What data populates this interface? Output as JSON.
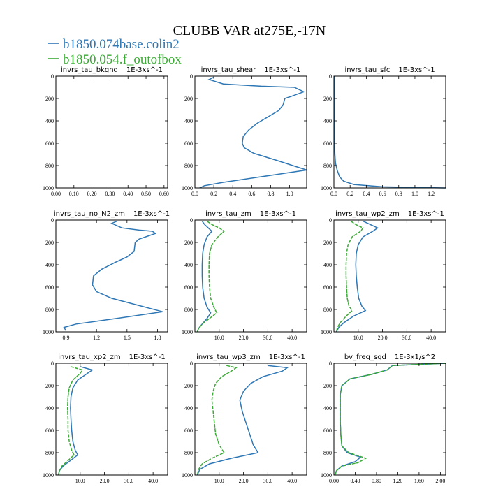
{
  "figure": {
    "title": "CLUBB VAR at275E,-17N"
  },
  "legend": [
    {
      "label": "b1850.074base.colin2",
      "color": "#2e77b5"
    },
    {
      "label": "b1850.054.f_outofbox",
      "color": "#3aaa35"
    }
  ],
  "chart_data": [
    {
      "type": "line",
      "title": "invrs_tau_bkgnd",
      "units": "1E-3xs^-1",
      "xlim": [
        0,
        0.62
      ],
      "ylim": [
        1000,
        0
      ],
      "xticks": [
        "0.00",
        "0.10",
        "0.20",
        "0.30",
        "0.40",
        "0.50",
        "0.60"
      ],
      "xtick_values": [
        0,
        0.1,
        0.2,
        0.3,
        0.4,
        0.5,
        0.6
      ],
      "yticks": [
        0,
        200,
        400,
        600,
        800,
        1000
      ],
      "series": []
    },
    {
      "type": "line",
      "title": "invrs_tau_shear",
      "units": "1E-3xs^-1",
      "xlim": [
        0,
        1.18
      ],
      "ylim": [
        1000,
        0
      ],
      "xticks": [
        "0.0",
        "0.2",
        "0.4",
        "0.6",
        "0.8",
        "1.0"
      ],
      "xtick_values": [
        0,
        0.2,
        0.4,
        0.6,
        0.8,
        1.0
      ],
      "yticks": [
        0,
        200,
        400,
        600,
        800,
        1000
      ],
      "series": [
        {
          "color": "#2e77b5",
          "x": [
            0.2,
            0.15,
            0.3,
            0.7,
            1.05,
            1.15,
            1.02,
            0.95,
            0.93,
            0.88,
            0.78,
            0.66,
            0.57,
            0.51,
            0.5,
            0.52,
            0.62,
            0.85,
            1.18,
            0.7,
            0.3,
            0.1,
            0.05
          ],
          "y": [
            10,
            30,
            70,
            90,
            100,
            140,
            180,
            200,
            260,
            310,
            360,
            420,
            480,
            540,
            600,
            640,
            690,
            750,
            840,
            900,
            950,
            980,
            1000
          ]
        }
      ]
    },
    {
      "type": "line",
      "title": "invrs_tau_sfc",
      "units": "1E-3xs^-1",
      "xlim": [
        0,
        1.38
      ],
      "ylim": [
        1000,
        0
      ],
      "xticks": [
        "0.0",
        "0.2",
        "0.4",
        "0.6",
        "0.8",
        "1.0",
        "1.2"
      ],
      "xtick_values": [
        0,
        0.2,
        0.4,
        0.6,
        0.8,
        1.0,
        1.2
      ],
      "yticks": [
        0,
        200,
        400,
        600,
        800,
        1000
      ],
      "series": [
        {
          "color": "#2e77b5",
          "x": [
            0.005,
            0.005,
            0.006,
            0.008,
            0.012,
            0.02,
            0.04,
            0.07,
            0.12,
            0.25,
            0.6,
            1.38
          ],
          "y": [
            0,
            200,
            400,
            600,
            700,
            780,
            840,
            900,
            940,
            970,
            990,
            1000
          ]
        }
      ]
    },
    {
      "type": "line",
      "title": "invrs_tau_no_N2_zm",
      "units": "1E-3xs^-1",
      "xlim": [
        0.8,
        1.9
      ],
      "ylim": [
        1000,
        0
      ],
      "xticks": [
        "0.9",
        "1.2",
        "1.5",
        "1.8"
      ],
      "xtick_values": [
        0.9,
        1.2,
        1.5,
        1.8
      ],
      "yticks": [
        0,
        200,
        400,
        600,
        800,
        1000
      ],
      "series": [
        {
          "color": "#2e77b5",
          "x": [
            1.4,
            1.35,
            1.45,
            1.62,
            1.75,
            1.78,
            1.62,
            1.58,
            1.57,
            1.5,
            1.38,
            1.25,
            1.17,
            1.16,
            1.2,
            1.35,
            1.6,
            1.85,
            1.4,
            1.0,
            0.88,
            0.9
          ],
          "y": [
            10,
            30,
            70,
            90,
            100,
            120,
            170,
            200,
            280,
            330,
            380,
            440,
            500,
            580,
            640,
            700,
            760,
            820,
            880,
            930,
            960,
            990
          ]
        }
      ]
    },
    {
      "type": "line",
      "title": "invrs_tau_zm",
      "units": "1E-3xs^-1",
      "xlim": [
        0,
        46
      ],
      "ylim": [
        1000,
        0
      ],
      "xticks": [
        "10.0",
        "20.0",
        "30.0",
        "40.0"
      ],
      "xtick_values": [
        10,
        20,
        30,
        40
      ],
      "yticks": [
        0,
        200,
        400,
        600,
        800,
        1000
      ],
      "series": [
        {
          "color": "#2e77b5",
          "x": [
            3.0,
            4.0,
            5.5,
            7.0,
            5.0,
            3.8,
            3.2,
            3.0,
            3.0,
            3.2,
            3.8,
            5.0,
            6.5,
            5.0,
            3.0,
            1.5,
            1.0
          ],
          "y": [
            10,
            40,
            70,
            100,
            150,
            220,
            300,
            400,
            500,
            600,
            700,
            780,
            830,
            880,
            930,
            970,
            1000
          ]
        },
        {
          "color": "#3aaa35",
          "x": [
            5.0,
            7.0,
            10.0,
            12.0,
            9.5,
            7.0,
            6.0,
            5.8,
            5.8,
            6.0,
            6.5,
            7.8,
            9.0,
            6.0,
            3.0,
            1.5,
            1.0
          ],
          "y": [
            10,
            40,
            70,
            100,
            150,
            220,
            300,
            400,
            500,
            600,
            700,
            780,
            830,
            880,
            930,
            970,
            1000
          ]
        }
      ]
    },
    {
      "type": "line",
      "title": "invrs_tau_wp2_zm",
      "units": "1E-3xs^-1",
      "xlim": [
        0,
        46
      ],
      "ylim": [
        1000,
        0
      ],
      "xticks": [
        "10.0",
        "20.0",
        "30.0",
        "40.0"
      ],
      "xtick_values": [
        10,
        20,
        30,
        40
      ],
      "yticks": [
        0,
        200,
        400,
        600,
        800,
        1000
      ],
      "series": [
        {
          "color": "#2e77b5",
          "x": [
            12.0,
            15.0,
            18.0,
            16.0,
            12.0,
            10.0,
            9.2,
            9.0,
            9.2,
            9.6,
            10.2,
            11.5,
            13.0,
            8.0,
            4.0,
            2.0,
            1.0
          ],
          "y": [
            10,
            40,
            70,
            100,
            150,
            220,
            300,
            400,
            500,
            600,
            700,
            770,
            810,
            860,
            920,
            960,
            1000
          ]
        },
        {
          "color": "#3aaa35",
          "x": [
            7.0,
            9.0,
            12.0,
            11.0,
            7.5,
            5.8,
            5.2,
            5.0,
            5.0,
            5.2,
            5.5,
            6.2,
            7.5,
            5.0,
            2.5,
            1.5,
            1.0
          ],
          "y": [
            10,
            40,
            70,
            100,
            150,
            220,
            300,
            400,
            500,
            600,
            700,
            770,
            810,
            860,
            920,
            960,
            1000
          ]
        }
      ]
    },
    {
      "type": "line",
      "title": "invrs_tau_xp2_zm",
      "units": "1E-3xs^-1",
      "xlim": [
        0,
        46
      ],
      "ylim": [
        1000,
        0
      ],
      "xticks": [
        "10.0",
        "20.0",
        "30.0",
        "40.0"
      ],
      "xtick_values": [
        10,
        20,
        30,
        40
      ],
      "yticks": [
        0,
        200,
        400,
        600,
        800,
        1000
      ],
      "series": [
        {
          "color": "#2e77b5",
          "x": [
            10.0,
            15.0,
            13.0,
            9.0,
            7.0,
            6.2,
            6.0,
            6.2,
            6.5,
            7.0,
            8.0,
            9.0,
            6.0,
            3.0,
            1.5,
            1.0
          ],
          "y": [
            30,
            60,
            90,
            150,
            220,
            300,
            400,
            500,
            600,
            700,
            780,
            820,
            870,
            920,
            960,
            1000
          ]
        },
        {
          "color": "#3aaa35",
          "x": [
            6.0,
            11.0,
            10.0,
            7.0,
            5.5,
            5.0,
            4.8,
            5.0,
            5.0,
            5.5,
            6.5,
            7.5,
            5.0,
            2.5,
            1.5,
            1.0
          ],
          "y": [
            30,
            60,
            90,
            150,
            220,
            300,
            400,
            500,
            600,
            700,
            780,
            820,
            870,
            920,
            960,
            1000
          ]
        }
      ]
    },
    {
      "type": "line",
      "title": "invrs_tau_wp3_zm",
      "units": "1E-3xs^-1",
      "xlim": [
        0,
        46
      ],
      "ylim": [
        1000,
        0
      ],
      "xticks": [
        "10.0",
        "20.0",
        "30.0",
        "40.0"
      ],
      "xtick_values": [
        10,
        20,
        30,
        40
      ],
      "yticks": [
        0,
        200,
        400,
        600,
        800,
        1000
      ],
      "series": [
        {
          "color": "#2e77b5",
          "x": [
            30.0,
            38.0,
            36.0,
            28.0,
            23.0,
            20.0,
            18.5,
            19.5,
            21.0,
            22.5,
            24.0,
            26.0,
            15.0,
            6.0,
            2.0,
            1.0
          ],
          "y": [
            20,
            40,
            70,
            120,
            180,
            250,
            330,
            430,
            530,
            630,
            730,
            800,
            850,
            900,
            950,
            1000
          ]
        },
        {
          "color": "#3aaa35",
          "x": [
            13.0,
            17.0,
            15.0,
            11.0,
            8.5,
            7.5,
            7.0,
            7.5,
            8.0,
            8.5,
            10.0,
            12.0,
            7.0,
            3.0,
            1.5,
            1.0
          ],
          "y": [
            20,
            40,
            70,
            120,
            180,
            250,
            330,
            430,
            530,
            630,
            730,
            800,
            850,
            900,
            950,
            1000
          ]
        }
      ]
    },
    {
      "type": "line",
      "title": "bv_freq_sqd",
      "units": "1E-3x1/s^2",
      "xlim": [
        0,
        2.1
      ],
      "ylim": [
        1000,
        0
      ],
      "xticks": [
        "0.00",
        "0.40",
        "0.80",
        "1.20",
        "1.60",
        "2.00"
      ],
      "xtick_values": [
        0,
        0.4,
        0.8,
        1.2,
        1.6,
        2.0
      ],
      "yticks": [
        0,
        200,
        400,
        600,
        800,
        1000
      ],
      "series": [
        {
          "color": "#2e77b5",
          "x": [
            2.1,
            1.1,
            1.0,
            0.7,
            0.3,
            0.15,
            0.12,
            0.12,
            0.12,
            0.13,
            0.15,
            0.25,
            0.5,
            0.4,
            0.15,
            0.05,
            0.02
          ],
          "y": [
            0,
            20,
            60,
            100,
            140,
            200,
            280,
            400,
            520,
            640,
            740,
            800,
            840,
            880,
            920,
            960,
            1000
          ]
        },
        {
          "color": "#3aaa35",
          "x": [
            2.1,
            1.1,
            1.0,
            0.7,
            0.3,
            0.15,
            0.12,
            0.12,
            0.12,
            0.13,
            0.15,
            0.28,
            0.6,
            0.45,
            0.15,
            0.05,
            0.02
          ],
          "y": [
            0,
            20,
            60,
            100,
            140,
            200,
            280,
            400,
            520,
            640,
            740,
            800,
            850,
            890,
            920,
            960,
            1000
          ]
        }
      ]
    }
  ]
}
